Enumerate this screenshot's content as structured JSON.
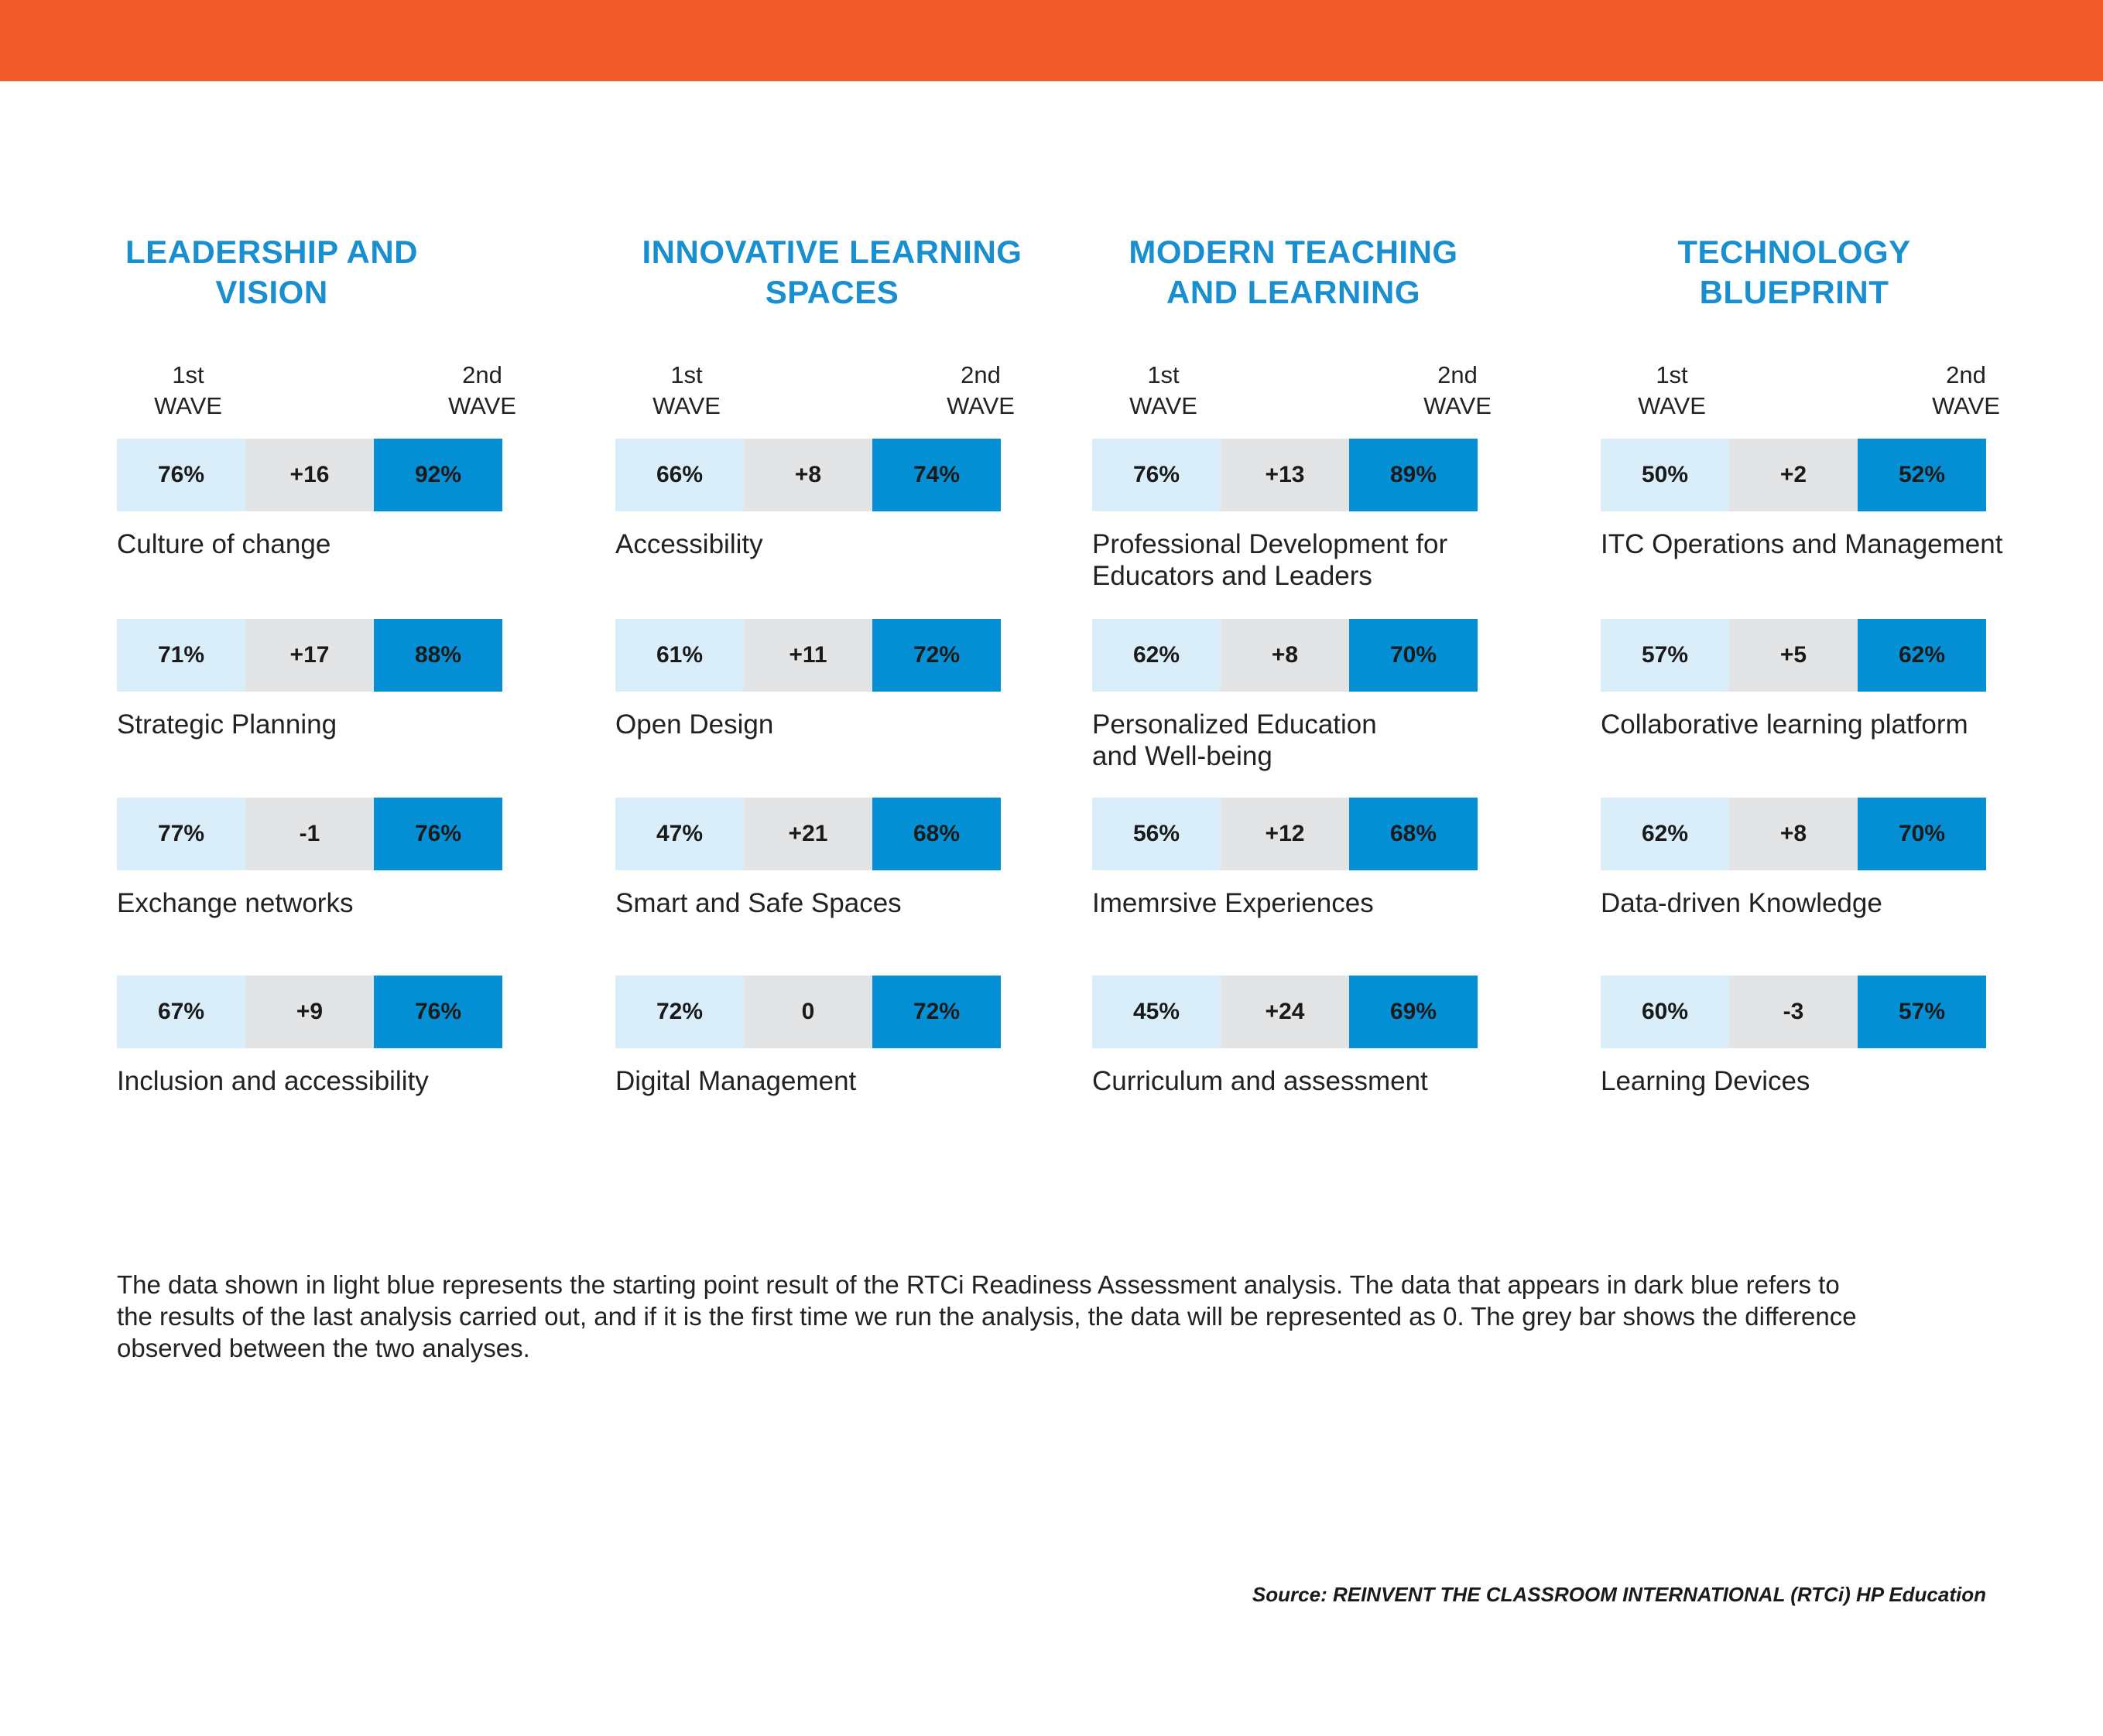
{
  "colors": {
    "top_bar": "#f15a2b",
    "title": "#1a8fd0",
    "first_wave": "#d9eef9",
    "difference": "#e3e4e5",
    "second_wave": "#0590d6"
  },
  "chart_data": {
    "type": "table",
    "wave_labels": {
      "first": [
        "1st",
        "WAVE"
      ],
      "second": [
        "2nd",
        "WAVE"
      ]
    },
    "sections": [
      {
        "title_lines": [
          "LEADERSHIP AND VISION"
        ],
        "items": [
          {
            "first": "76%",
            "diff": "+16",
            "second": "92%",
            "label_lines": [
              "Culture of change"
            ]
          },
          {
            "first": "71%",
            "diff": "+17",
            "second": "88%",
            "label_lines": [
              "Strategic Planning"
            ]
          },
          {
            "first": "77%",
            "diff": "-1",
            "second": "76%",
            "label_lines": [
              "Exchange networks"
            ]
          },
          {
            "first": "67%",
            "diff": "+9",
            "second": "76%",
            "label_lines": [
              "Inclusion and accessibility"
            ]
          }
        ]
      },
      {
        "title_lines": [
          "INNOVATIVE LEARNING",
          "SPACES"
        ],
        "items": [
          {
            "first": "66%",
            "diff": "+8",
            "second": "74%",
            "label_lines": [
              "Accessibility"
            ]
          },
          {
            "first": "61%",
            "diff": "+11",
            "second": "72%",
            "label_lines": [
              "Open Design"
            ]
          },
          {
            "first": "47%",
            "diff": "+21",
            "second": "68%",
            "label_lines": [
              "Smart and Safe Spaces"
            ]
          },
          {
            "first": "72%",
            "diff": "0",
            "second": "72%",
            "label_lines": [
              "Digital Management"
            ]
          }
        ]
      },
      {
        "title_lines": [
          "MODERN TEACHING",
          "AND LEARNING"
        ],
        "items": [
          {
            "first": "76%",
            "diff": "+13",
            "second": "89%",
            "label_lines": [
              "Professional Development for",
              "Educators and Leaders"
            ]
          },
          {
            "first": "62%",
            "diff": "+8",
            "second": "70%",
            "label_lines": [
              "Personalized Education",
              "and Well-being"
            ]
          },
          {
            "first": "56%",
            "diff": "+12",
            "second": "68%",
            "label_lines": [
              "Imemrsive Experiences"
            ]
          },
          {
            "first": "45%",
            "diff": "+24",
            "second": "69%",
            "label_lines": [
              "Curriculum and assessment"
            ]
          }
        ]
      },
      {
        "title_lines": [
          "TECHNOLOGY BLUEPRINT"
        ],
        "items": [
          {
            "first": "50%",
            "diff": "+2",
            "second": "52%",
            "label_lines": [
              "ITC Operations and Management"
            ]
          },
          {
            "first": "57%",
            "diff": "+5",
            "second": "62%",
            "label_lines": [
              "Collaborative learning platform"
            ]
          },
          {
            "first": "62%",
            "diff": "+8",
            "second": "70%",
            "label_lines": [
              "Data-driven Knowledge"
            ]
          },
          {
            "first": "60%",
            "diff": "-3",
            "second": "57%",
            "label_lines": [
              "Learning Devices"
            ]
          }
        ]
      }
    ]
  },
  "note_lines": [
    "The data shown in light blue represents the starting point result of the RTCi Readiness Assessment analysis. The data that appears in dark blue refers to",
    "the results of the last analysis carried out, and if it is the first time we run the analysis, the data will be represented as 0. The grey bar shows the difference",
    "observed between the two analyses."
  ],
  "source": "Source: REINVENT THE CLASSROOM INTERNATIONAL (RTCi) HP Education"
}
